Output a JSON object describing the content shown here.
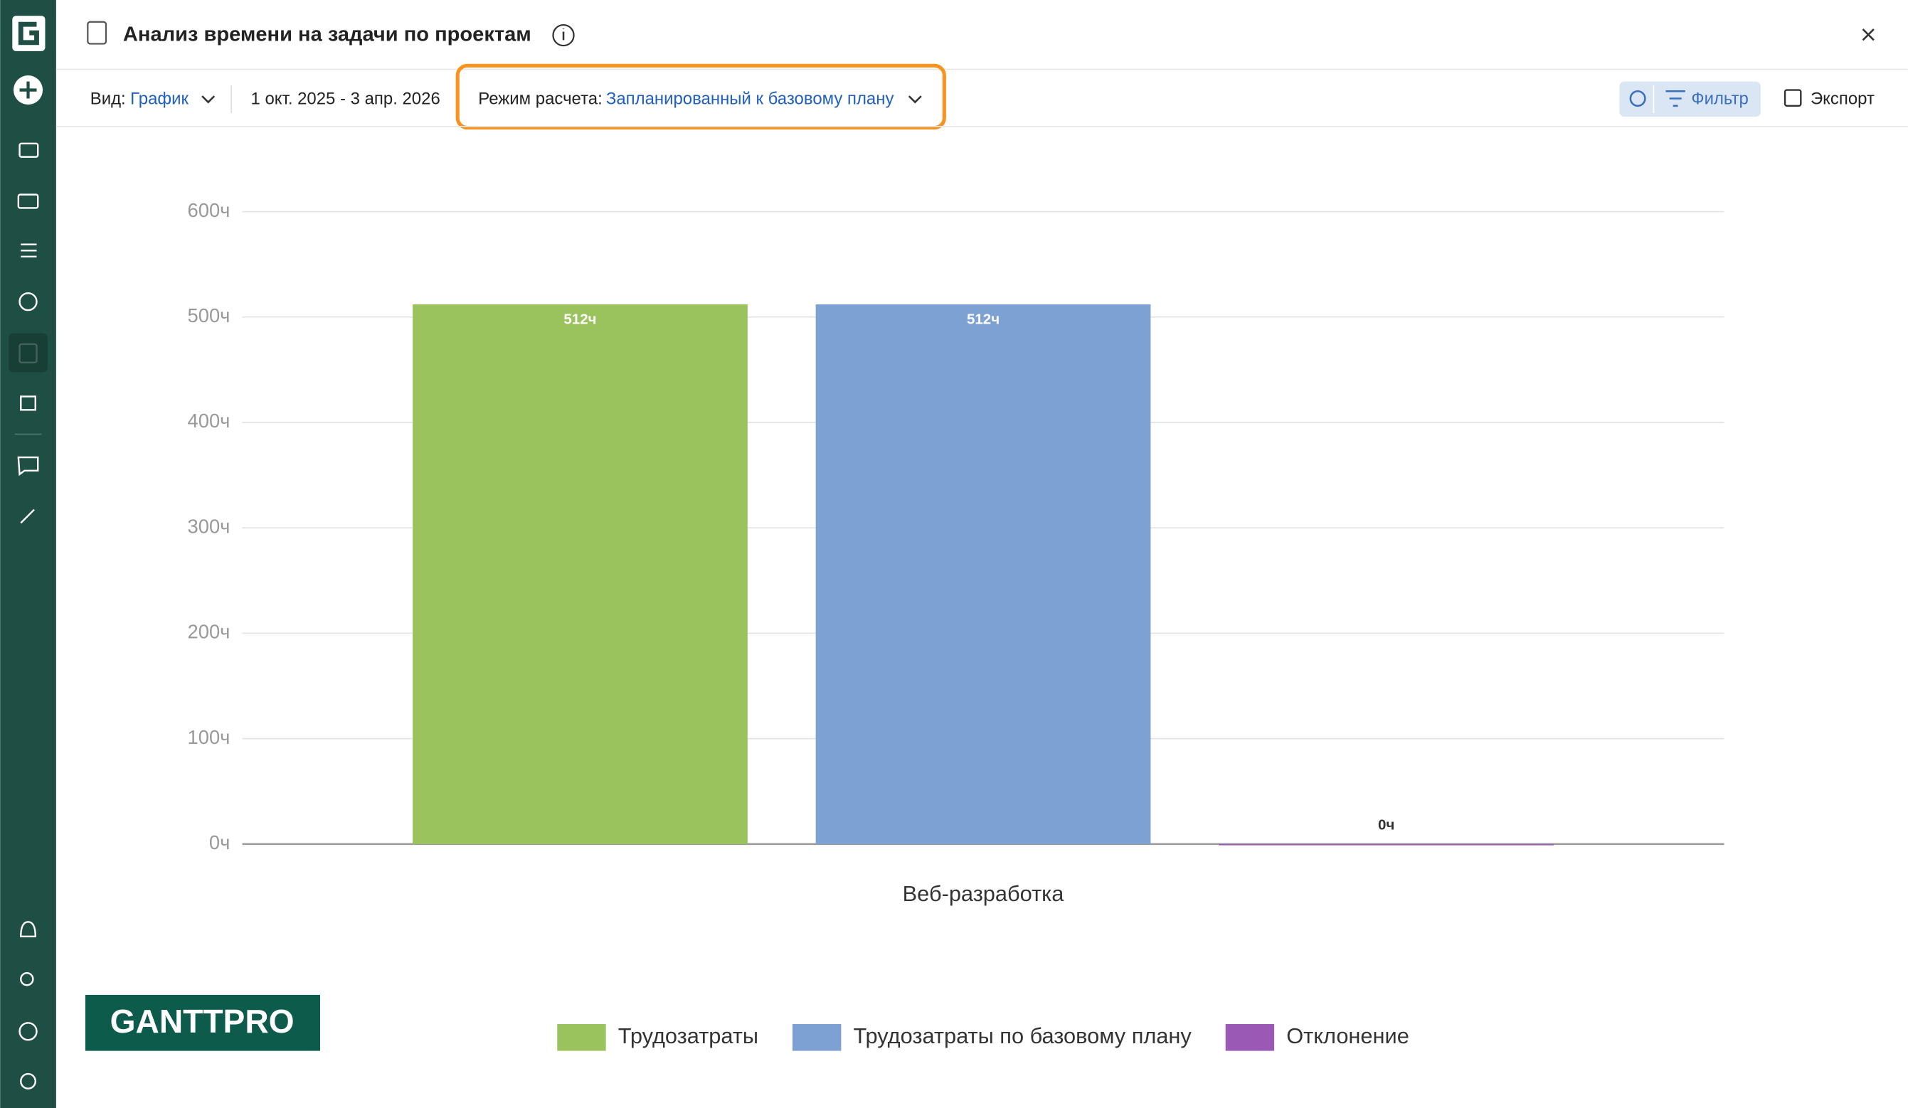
{
  "header": {
    "title": "Анализ времени на задачи по проектам"
  },
  "toolbar": {
    "view_label": "Вид:",
    "view_value": "График",
    "date_range": "1 окт. 2025 - 3 апр. 2026",
    "mode_label": "Режим расчета:",
    "mode_value": "Запланированный к базовому плану",
    "filter": "Фильтр",
    "export": "Экспорт"
  },
  "logo": "GANTTPRO",
  "chart_data": {
    "type": "bar",
    "categories": [
      "Веб-разработка"
    ],
    "series": [
      {
        "name": "Трудозатраты",
        "color": "#9bc35d",
        "values": [
          512
        ],
        "value_labels": [
          "512ч"
        ]
      },
      {
        "name": "Трудозатраты по базовому плану",
        "color": "#7ea1d4",
        "values": [
          512
        ],
        "value_labels": [
          "512ч"
        ]
      },
      {
        "name": "Отклонение",
        "color": "#9b59b6",
        "values": [
          0
        ],
        "value_labels": [
          "0ч"
        ]
      }
    ],
    "ylim": [
      0,
      600
    ],
    "yticks": [
      {
        "value": 0,
        "label": "0ч"
      },
      {
        "value": 100,
        "label": "100ч"
      },
      {
        "value": 200,
        "label": "200ч"
      },
      {
        "value": 300,
        "label": "300ч"
      },
      {
        "value": 400,
        "label": "400ч"
      },
      {
        "value": 500,
        "label": "500ч"
      },
      {
        "value": 600,
        "label": "600ч"
      }
    ],
    "grid": true,
    "legend": "bottom"
  }
}
